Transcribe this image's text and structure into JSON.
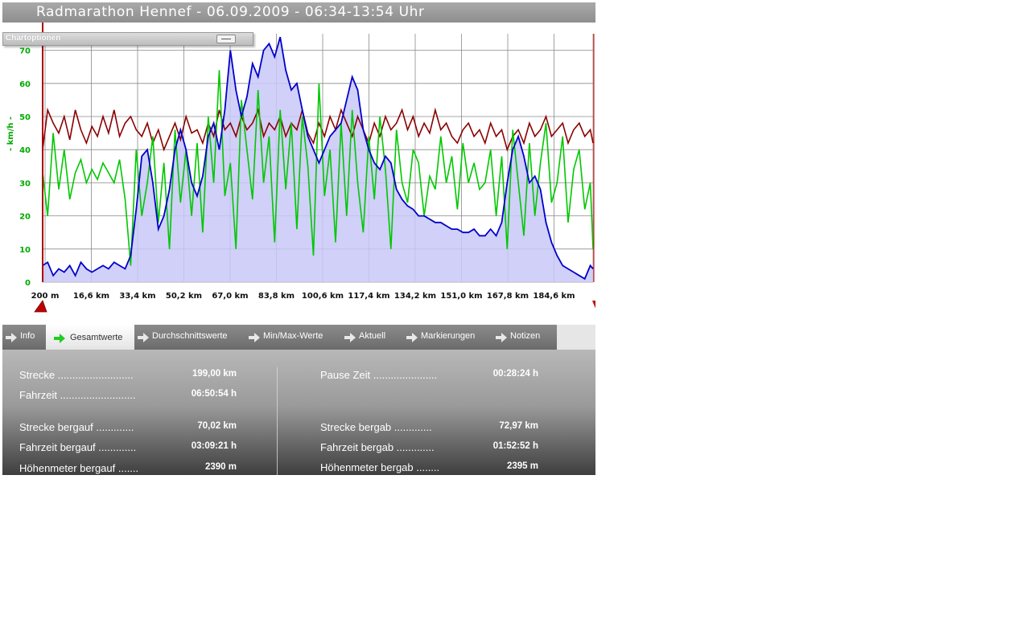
{
  "window": {
    "title": "Radmarathon Hennef - 06.09.2009 - 06:34-13:54 Uhr"
  },
  "chart_options": {
    "label": "Chartoptionen"
  },
  "chart_data": {
    "type": "line",
    "ylabel": "- km/h -",
    "ylim": [
      0,
      75
    ],
    "yticks": [
      "0",
      "10",
      "20",
      "30",
      "40",
      "50",
      "60",
      "70"
    ],
    "xlim_km": [
      0.2,
      199
    ],
    "xticks": [
      "200 m",
      "16,6 km",
      "33,4 km",
      "50,2 km",
      "67,0 km",
      "83,8 km",
      "100,6 km",
      "117,4 km",
      "134,2 km",
      "151,0 km",
      "167,8 km",
      "184,6 km"
    ],
    "grid": true,
    "colors": {
      "elevation_line": "#0000cc",
      "elevation_fill": "#c8c8f8",
      "speed": "#00c800",
      "third": "#8b0000",
      "marker": "#cc0000",
      "ytick": "#00aa00"
    },
    "series": [
      {
        "key": "blue",
        "x": [
          0.2,
          2,
          4,
          6,
          8,
          10,
          12,
          14,
          16,
          18,
          20,
          22,
          24,
          26,
          28,
          30,
          32,
          34,
          36,
          38,
          40,
          42,
          44,
          46,
          48,
          50,
          52,
          54,
          56,
          58,
          60,
          62,
          64,
          66,
          68,
          70,
          72,
          74,
          76,
          78,
          80,
          82,
          84,
          86,
          88,
          90,
          92,
          94,
          96,
          98,
          100,
          102,
          104,
          106,
          108,
          110,
          112,
          114,
          116,
          118,
          120,
          122,
          124,
          126,
          128,
          130,
          132,
          134,
          136,
          138,
          140,
          142,
          144,
          146,
          148,
          150,
          152,
          154,
          156,
          158,
          160,
          162,
          164,
          166,
          168,
          170,
          172,
          174,
          176,
          178,
          180,
          182,
          184,
          186,
          188,
          190,
          192,
          194,
          196,
          198,
          199
        ],
        "values": [
          5,
          6,
          2,
          4,
          3,
          5,
          2,
          6,
          4,
          3,
          4,
          5,
          4,
          6,
          5,
          4,
          8,
          22,
          38,
          40,
          30,
          16,
          20,
          28,
          40,
          46,
          40,
          30,
          26,
          32,
          44,
          48,
          40,
          52,
          70,
          58,
          50,
          56,
          66,
          62,
          70,
          72,
          68,
          74,
          64,
          58,
          60,
          52,
          44,
          40,
          36,
          40,
          44,
          46,
          48,
          55,
          62,
          58,
          46,
          40,
          36,
          34,
          38,
          36,
          28,
          25,
          23,
          22,
          20,
          20,
          19,
          18,
          18,
          17,
          16,
          16,
          15,
          15,
          16,
          14,
          14,
          16,
          14,
          18,
          30,
          40,
          44,
          38,
          30,
          32,
          28,
          18,
          12,
          8,
          5,
          4,
          3,
          2,
          1,
          5,
          4
        ]
      },
      {
        "key": "green",
        "x": [
          0.2,
          2,
          4,
          6,
          8,
          10,
          12,
          14,
          16,
          18,
          20,
          22,
          24,
          26,
          28,
          30,
          32,
          34,
          36,
          38,
          40,
          42,
          44,
          46,
          48,
          50,
          52,
          54,
          56,
          58,
          60,
          62,
          64,
          66,
          68,
          70,
          72,
          74,
          76,
          78,
          80,
          82,
          84,
          86,
          88,
          90,
          92,
          94,
          96,
          98,
          100,
          102,
          104,
          106,
          108,
          110,
          112,
          114,
          116,
          118,
          120,
          122,
          124,
          126,
          128,
          130,
          132,
          134,
          136,
          138,
          140,
          142,
          144,
          146,
          148,
          150,
          152,
          154,
          156,
          158,
          160,
          162,
          164,
          166,
          168,
          170,
          172,
          174,
          176,
          178,
          180,
          182,
          184,
          186,
          188,
          190,
          192,
          194,
          196,
          198,
          199
        ],
        "values": [
          33,
          20,
          45,
          28,
          40,
          25,
          33,
          37,
          30,
          34,
          31,
          36,
          33,
          30,
          37,
          25,
          5,
          40,
          20,
          30,
          44,
          18,
          36,
          10,
          46,
          24,
          40,
          20,
          42,
          15,
          50,
          30,
          64,
          26,
          36,
          10,
          55,
          40,
          25,
          58,
          30,
          44,
          12,
          52,
          28,
          48,
          16,
          50,
          35,
          8,
          60,
          26,
          40,
          12,
          48,
          20,
          52,
          30,
          15,
          44,
          25,
          50,
          34,
          10,
          46,
          30,
          24,
          40,
          36,
          20,
          32,
          28,
          44,
          30,
          38,
          22,
          42,
          30,
          36,
          28,
          30,
          40,
          20,
          38,
          10,
          46,
          30,
          14,
          42,
          20,
          36,
          48,
          24,
          30,
          44,
          18,
          34,
          40,
          22,
          30,
          10
        ]
      },
      {
        "key": "red",
        "x": [
          0.2,
          2,
          4,
          6,
          8,
          10,
          12,
          14,
          16,
          18,
          20,
          22,
          24,
          26,
          28,
          30,
          32,
          34,
          36,
          38,
          40,
          42,
          44,
          46,
          48,
          50,
          52,
          54,
          56,
          58,
          60,
          62,
          64,
          66,
          68,
          70,
          72,
          74,
          76,
          78,
          80,
          82,
          84,
          86,
          88,
          90,
          92,
          94,
          96,
          98,
          100,
          102,
          104,
          106,
          108,
          110,
          112,
          114,
          116,
          118,
          120,
          122,
          124,
          126,
          128,
          130,
          132,
          134,
          136,
          138,
          140,
          142,
          144,
          146,
          148,
          150,
          152,
          154,
          156,
          158,
          160,
          162,
          164,
          166,
          168,
          170,
          172,
          174,
          176,
          178,
          180,
          182,
          184,
          186,
          188,
          190,
          192,
          194,
          196,
          198,
          199
        ],
        "values": [
          40,
          52,
          48,
          45,
          50,
          43,
          52,
          46,
          42,
          47,
          44,
          50,
          45,
          52,
          44,
          48,
          50,
          46,
          44,
          48,
          42,
          46,
          40,
          44,
          48,
          43,
          50,
          45,
          46,
          42,
          48,
          44,
          52,
          46,
          48,
          44,
          50,
          46,
          48,
          52,
          44,
          48,
          46,
          50,
          44,
          48,
          46,
          52,
          45,
          42,
          48,
          44,
          50,
          46,
          52,
          48,
          44,
          50,
          46,
          42,
          48,
          44,
          50,
          46,
          48,
          52,
          46,
          50,
          44,
          48,
          45,
          52,
          46,
          48,
          44,
          42,
          46,
          48,
          44,
          46,
          42,
          48,
          44,
          46,
          40,
          44,
          46,
          42,
          48,
          44,
          46,
          50,
          44,
          46,
          48,
          42,
          46,
          48,
          44,
          46,
          42
        ]
      }
    ]
  },
  "tabs": [
    {
      "label": "Info"
    },
    {
      "label": "Gesamtwerte"
    },
    {
      "label": "Durchschnittswerte"
    },
    {
      "label": "Min/Max-Werte"
    },
    {
      "label": "Aktuell"
    },
    {
      "label": "Markierungen"
    },
    {
      "label": "Notizen"
    }
  ],
  "stats": {
    "left": [
      {
        "label": "Strecke ..........................",
        "value": "199,00 km"
      },
      {
        "label": "Fahrzeit ..........................",
        "value": "06:50:54 h"
      },
      {
        "label": "Strecke bergauf .............",
        "value": "70,02 km"
      },
      {
        "label": "Fahrzeit bergauf .............",
        "value": "03:09:21 h"
      },
      {
        "label": "Höhenmeter bergauf .......",
        "value": "2390 m"
      }
    ],
    "right": [
      {
        "label": "Pause Zeit ......................",
        "value": "00:28:24 h"
      },
      {
        "label": "Strecke bergab .............",
        "value": "72,97 km"
      },
      {
        "label": "Fahrzeit bergab .............",
        "value": "01:52:52 h"
      },
      {
        "label": "Höhenmeter bergab ........",
        "value": "2395 m"
      }
    ]
  }
}
